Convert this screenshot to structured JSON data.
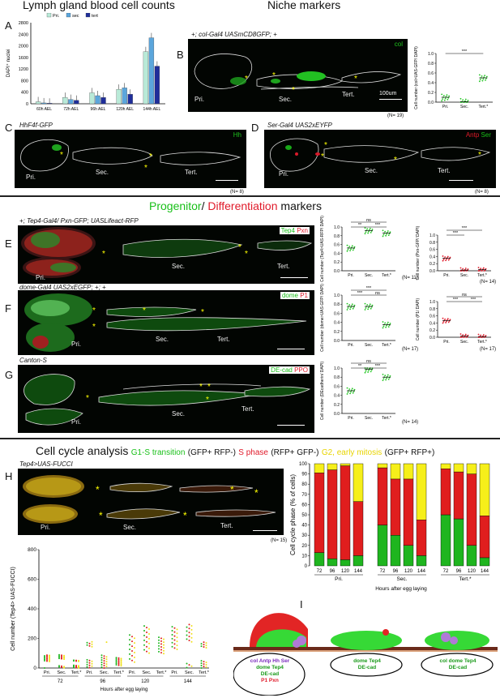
{
  "panelA": {
    "letter": "A",
    "title": "Lymph gland blood cell counts",
    "legend": [
      "Pri.",
      "sec",
      "tert"
    ],
    "colors": [
      "#b9ead8",
      "#5ba6dc",
      "#1f2e9a"
    ],
    "ylabel": "DAPI⁺ nuclei",
    "chart_data": {
      "type": "bar",
      "categories": [
        "60h AEL",
        "72h AEL",
        "96h AEL",
        "120h AEL",
        "144h AEL"
      ],
      "series": [
        {
          "name": "Pri",
          "values": [
            70,
            220,
            380,
            500,
            1800
          ]
        },
        {
          "name": "sec",
          "values": [
            30,
            150,
            280,
            550,
            2280
          ]
        },
        {
          "name": "tert",
          "values": [
            20,
            120,
            220,
            330,
            1300
          ]
        }
      ],
      "ylim": [
        0,
        2800
      ],
      "yticks": [
        0,
        400,
        800,
        1200,
        1600,
        2000,
        2400,
        2800
      ]
    }
  },
  "niche": {
    "title": "Niche markers"
  },
  "panelB": {
    "letter": "B",
    "genotype": "+; col-Gal4 UASmCD8GFP; +",
    "marker": "col",
    "labels": {
      "pri": "Pri.",
      "sec": "Sec.",
      "tert": "Tert."
    },
    "scale": "100um",
    "n": "(N= 19)",
    "plot": {
      "ylabel": "Cell number (col>UAS-GFP/ DAPI)",
      "yticks": [
        "0.0",
        "0.2",
        "0.4",
        "0.6",
        "0.8",
        "1.0"
      ],
      "cats": [
        "Pri.",
        "Sec.",
        "Tert.*"
      ],
      "sig": "***",
      "means": [
        0.1,
        0.01,
        0.5
      ]
    }
  },
  "panelC": {
    "letter": "C",
    "genotype": "HhF4f-GFP",
    "marker": "Hh",
    "n": "(N= 8)",
    "labels": {
      "pri": "Pri.",
      "sec": "Sec.",
      "tert": "Tert."
    }
  },
  "panelD": {
    "letter": "D",
    "genotype": "Ser-Gal4 UAS2xEYFP",
    "marker1": "Antp",
    "marker2": "Ser",
    "n": "(N= 8)",
    "labels": {
      "pri": "Pri.",
      "sec": "Sec.",
      "tert": "Tert."
    }
  },
  "progenitor": {
    "title1": "Progenitor",
    "slash": "/",
    "title2": "Differentiation",
    "title3": "markers"
  },
  "panelE": {
    "letter": "E",
    "genotype": "+; Tep4-Gal4/ Pxn-GFP; UASLifeact-RFP",
    "marker1": "Tep4",
    "marker2": "Pxn",
    "labels": {
      "pri": "Pri.",
      "sec": "Sec.",
      "tert": "Tert."
    },
    "plot1": {
      "ylabel": "Cell number (Tep4>UAS-RFP/ DAPI)",
      "n": "(N= 11)",
      "sigs": [
        "**",
        "***",
        "ns"
      ],
      "means": [
        0.52,
        0.92,
        0.86
      ]
    },
    "plot2": {
      "ylabel": "Cell number (Pxn-GFP/ DAPI)",
      "n": "(N= 14)",
      "sigs": [
        "***",
        "***"
      ],
      "means": [
        0.35,
        0.02,
        0.03
      ]
    }
  },
  "panelF": {
    "letter": "F",
    "genotype": "dome-Gal4 UAS2xEGFP; +; +",
    "marker1": "dome",
    "marker2": "P1",
    "labels": {
      "pri": "Pri.",
      "sec": "Sec.",
      "tert": "Tert."
    },
    "plot1": {
      "ylabel": "Cell number (dome>UAS-GFP/ DAPI)",
      "n": "(N= 17)",
      "sigs": [
        "***",
        "ns",
        "***"
      ],
      "means": [
        0.75,
        0.75,
        0.35
      ]
    },
    "plot2": {
      "ylabel": "Cell number (P1/ DAPI)",
      "n": "(N= 17)",
      "sigs": [
        "***",
        "***",
        "ns"
      ],
      "means": [
        0.47,
        0.03,
        0.02
      ]
    }
  },
  "panelG": {
    "letter": "G",
    "genotype": "Canton-S",
    "marker1": "DE-cad",
    "marker2": "PPO",
    "labels": {
      "pri": "Pri.",
      "sec": "Sec.",
      "tert": "Tert."
    },
    "plot1": {
      "ylabel": "Cell number (DEcadherin/ DAPI)",
      "n": "(N= 14)",
      "sigs": [
        "**",
        "***",
        "ns"
      ],
      "means": [
        0.5,
        0.97,
        0.8
      ]
    }
  },
  "cellcycle": {
    "title": "Cell cycle analysis",
    "g1": "G1-S transition",
    "g1b": "(GFP+ RFP-)",
    "s": "S phase",
    "sb": "(RFP+ GFP-)",
    "g2": "G2, early mitosis",
    "g2b": "(GFP+ RFP+)"
  },
  "panelH": {
    "letter": "H",
    "genotype": "Tep4>UAS-FUCCI",
    "n": "(N= 15)",
    "labels": {
      "pri": "Pri.",
      "sec": "Sec.",
      "tert": "Tert."
    }
  },
  "stacked": {
    "ylabel": "Cell cycle phase (% of cells)",
    "xlabel": "Hours after egg laying",
    "yticks": [
      "0",
      "10",
      "20",
      "30",
      "40",
      "50",
      "60",
      "70",
      "80",
      "90",
      "100"
    ],
    "groups": [
      "Pri.",
      "Sec.",
      "Tert.*"
    ],
    "hours": [
      "72",
      "96",
      "120",
      "144"
    ],
    "chart_data": {
      "type": "bar",
      "stacked": true,
      "categories": [
        "Pri.72",
        "Pri.96",
        "Pri.120",
        "Pri.144",
        "Sec.72",
        "Sec.96",
        "Sec.120",
        "Sec.144",
        "Tert.72",
        "Tert.96",
        "Tert.120",
        "Tert.144"
      ],
      "series": [
        {
          "name": "G1-S transition",
          "values": [
            13,
            7,
            6,
            10,
            40,
            30,
            20,
            10,
            50,
            46,
            20,
            8
          ]
        },
        {
          "name": "S phase",
          "values": [
            78,
            87,
            92,
            53,
            56,
            55,
            65,
            35,
            45,
            46,
            70,
            41
          ]
        },
        {
          "name": "G2, early mitosis",
          "values": [
            9,
            6,
            2,
            37,
            4,
            15,
            15,
            55,
            5,
            8,
            10,
            51
          ]
        }
      ]
    },
    "colors": {
      "g1": "#1fb51f",
      "s": "#e01e1e",
      "g2": "#f6ef1a"
    }
  },
  "scatterH": {
    "ylabel": "Cell number (Tep4> UAS-FUCCI)",
    "xlabel": "Hours after egg laying",
    "yticks": [
      "0",
      "200",
      "400",
      "600",
      "800"
    ],
    "hours": [
      "72",
      "96",
      "120",
      "144"
    ],
    "cats": [
      "Pri.",
      "Sec.",
      "Tert.*"
    ]
  },
  "panelI": {
    "letter": "I",
    "left": [
      "col Antp Hh Ser",
      "dome Tep4",
      "DE-cad",
      "P1 Pxn"
    ],
    "mid": [
      "dome Tep4",
      "DE-cad"
    ],
    "right": [
      "col dome Tep4",
      "DE-cad"
    ]
  }
}
